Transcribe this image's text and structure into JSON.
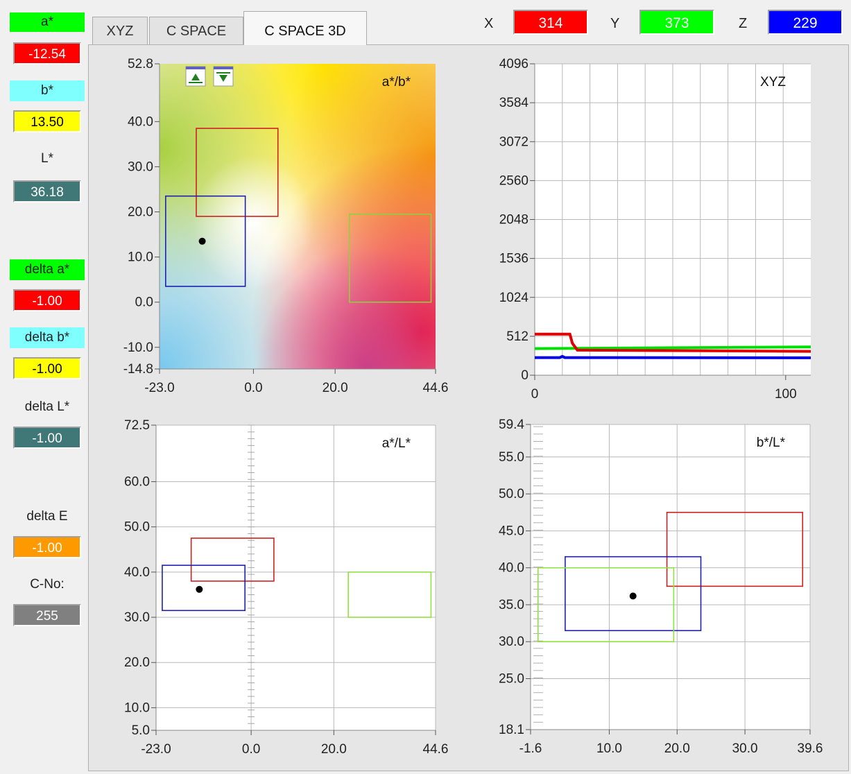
{
  "sidebar": {
    "a_label": "a*",
    "a_value": "-12.54",
    "b_label": "b*",
    "b_value": "13.50",
    "l_label": "L*",
    "l_value": "36.18",
    "da_label": "delta a*",
    "da_value": "-1.00",
    "db_label": "delta b*",
    "db_value": "-1.00",
    "dl_label": "delta L*",
    "dl_value": "-1.00",
    "de_label": "delta E",
    "de_value": "-1.00",
    "cno_label": "C-No:",
    "cno_value": "255"
  },
  "tabs": [
    "XYZ",
    "C SPACE",
    "C SPACE 3D"
  ],
  "readout": {
    "x_label": "X",
    "x_value": "314",
    "y_label": "Y",
    "y_value": "373",
    "z_label": "Z",
    "z_value": "229"
  },
  "colors": {
    "red": "#e00000",
    "green": "#18e818",
    "blue": "#0000e8",
    "cyan": "#80ffff",
    "yellow": "#ffff00",
    "teal": "#407878",
    "orange": "#ff9900",
    "gray": "#808080"
  },
  "chart_data": [
    {
      "type": "scatter",
      "id": "ab",
      "title": "a*/b*",
      "xlim": [
        -23.0,
        44.6
      ],
      "ylim": [
        -14.8,
        52.8
      ],
      "xticks": [
        "-23.0",
        "0.0",
        "20.0",
        "44.6"
      ],
      "xtick_values": [
        -23.0,
        0.0,
        20.0,
        44.6
      ],
      "yticks": [
        "52.8",
        "40.0",
        "30.0",
        "20.0",
        "10.0",
        "0.0",
        "-10.0",
        "-14.8"
      ],
      "ytick_values": [
        52.8,
        40.0,
        30.0,
        20.0,
        10.0,
        0.0,
        -10.0,
        -14.8
      ],
      "point": [
        -12.54,
        13.5
      ],
      "boxes": [
        {
          "color": "#d02020",
          "x": [
            -14,
            6
          ],
          "y": [
            19,
            38.5
          ]
        },
        {
          "color": "#2020b0",
          "x": [
            -21.5,
            -2
          ],
          "y": [
            3.5,
            23.5
          ]
        },
        {
          "color": "#90d040",
          "x": [
            23.5,
            43.5
          ],
          "y": [
            0,
            19.5
          ]
        }
      ]
    },
    {
      "type": "line",
      "id": "xyz",
      "title": "XYZ",
      "xlim": [
        0,
        110
      ],
      "ylim": [
        0,
        4096
      ],
      "xticks": [
        "0",
        "100"
      ],
      "xtick_values": [
        0,
        100
      ],
      "yticks": [
        "4096",
        "3584",
        "3072",
        "2560",
        "2048",
        "1536",
        "1024",
        "512",
        "0"
      ],
      "ytick_values": [
        4096,
        3584,
        3072,
        2560,
        2048,
        1536,
        1024,
        512,
        0
      ],
      "series": [
        {
          "color": "#00e000",
          "values": [
            [
              0,
              350
            ],
            [
              110,
              372
            ]
          ]
        },
        {
          "color": "#e00000",
          "values": [
            [
              0,
              540
            ],
            [
              14,
              540
            ],
            [
              15,
              420
            ],
            [
              17,
              330
            ],
            [
              20,
              330
            ],
            [
              110,
              314
            ]
          ]
        },
        {
          "color": "#0000e0",
          "values": [
            [
              0,
              232
            ],
            [
              10,
              232
            ],
            [
              11,
              248
            ],
            [
              12,
              232
            ],
            [
              110,
              229
            ]
          ]
        }
      ]
    },
    {
      "type": "scatter",
      "id": "al",
      "title": "a*/L*",
      "xlim": [
        -23.0,
        44.6
      ],
      "ylim": [
        5.0,
        72.5
      ],
      "xticks": [
        "-23.0",
        "0.0",
        "20.0",
        "44.6"
      ],
      "xtick_values": [
        -23.0,
        0.0,
        20.0,
        44.6
      ],
      "yticks": [
        "72.5",
        "60.0",
        "50.0",
        "40.0",
        "30.0",
        "20.0",
        "10.0",
        "5.0"
      ],
      "ytick_values": [
        72.5,
        60.0,
        50.0,
        40.0,
        30.0,
        20.0,
        10.0,
        5.0
      ],
      "point": [
        -12.54,
        36.18
      ],
      "boxes": [
        {
          "color": "#d02020",
          "x": [
            -14.5,
            5.5
          ],
          "y": [
            38,
            47.5
          ]
        },
        {
          "color": "#2020b0",
          "x": [
            -21.5,
            -1.5
          ],
          "y": [
            31.5,
            41.5
          ]
        },
        {
          "color": "#90e040",
          "x": [
            23.5,
            43.5
          ],
          "y": [
            30,
            40
          ]
        }
      ]
    },
    {
      "type": "scatter",
      "id": "bl",
      "title": "b*/L*",
      "xlim": [
        -1.6,
        39.6
      ],
      "ylim": [
        18.1,
        59.4
      ],
      "xticks": [
        "-1.6",
        "10.0",
        "20.0",
        "30.0",
        "39.6"
      ],
      "xtick_values": [
        -1.6,
        10.0,
        20.0,
        30.0,
        39.6
      ],
      "yticks": [
        "59.4",
        "55.0",
        "50.0",
        "45.0",
        "40.0",
        "35.0",
        "30.0",
        "25.0",
        "18.1"
      ],
      "ytick_values": [
        59.4,
        55.0,
        50.0,
        45.0,
        40.0,
        35.0,
        30.0,
        25.0,
        18.1
      ],
      "point": [
        13.5,
        36.18
      ],
      "boxes": [
        {
          "color": "#d02020",
          "x": [
            18.5,
            38.5
          ],
          "y": [
            37.5,
            47.5
          ]
        },
        {
          "color": "#2020b0",
          "x": [
            3.5,
            23.5
          ],
          "y": [
            31.5,
            41.5
          ]
        },
        {
          "color": "#90e040",
          "x": [
            -0.5,
            19.5
          ],
          "y": [
            30,
            40
          ]
        }
      ]
    }
  ]
}
